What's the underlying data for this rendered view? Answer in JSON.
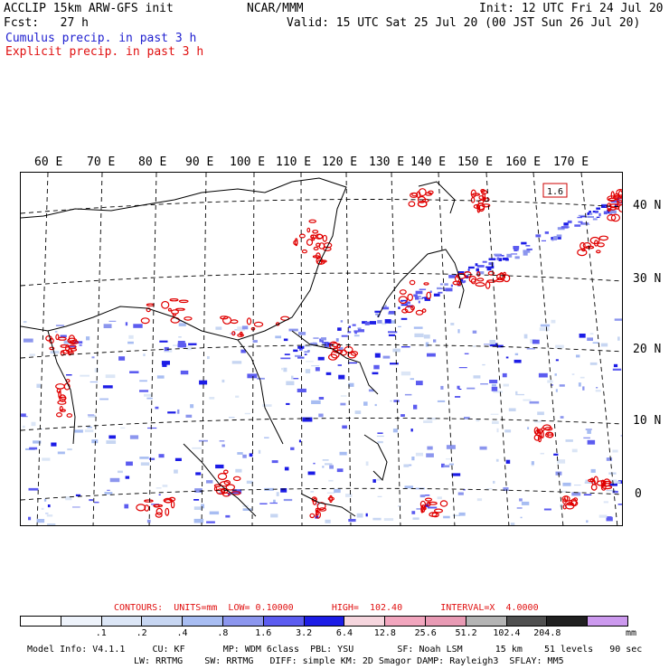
{
  "header": {
    "line1_left": "ACCLIP 15km ARW-GFS init",
    "line1_center": "NCAR/MMM",
    "line1_right": "Init: 12 UTC Fri 24 Jul 20",
    "line2_left": "Fcst:   27 h",
    "line2_right": "Valid: 15 UTC Sat 25 Jul 20 (00 JST Sun 26 Jul 20)",
    "legend_cumulus": "Cumulus precip. in past 3 h",
    "legend_explicit": "Explicit precip. in past 3 h"
  },
  "map": {
    "lon_labels": [
      "60 E",
      "70 E",
      "80 E",
      "90 E",
      "100 E",
      "110 E",
      "120 E",
      "130 E",
      "140 E",
      "150 E",
      "160 E",
      "170 E"
    ],
    "lat_labels": [
      "40 N",
      "30 N",
      "20 N",
      "10 N",
      "0"
    ],
    "max_label": "1.6"
  },
  "contours": {
    "text": "CONTOURS:  UNITS=mm  LOW= 0.10000       HIGH=  102.40       INTERVAL=X  4.0000"
  },
  "colorbar": {
    "colors": [
      "#ffffff",
      "#eef3fb",
      "#dce6f6",
      "#c7d6f2",
      "#a8bdf2",
      "#8c96ee",
      "#5c5cf0",
      "#1c1ce6",
      "#f6d6de",
      "#f2a6be",
      "#e89ab4",
      "#b4b4b4",
      "#505050",
      "#202020",
      "#cc99ee"
    ],
    "labels": [
      ".1",
      ".2",
      ".4",
      ".8",
      "1.6",
      "3.2",
      "6.4",
      "12.8",
      "25.6",
      "51.2",
      "102.4",
      "204.8"
    ],
    "units": "mm"
  },
  "footer": {
    "line1": "Model Info: V4.1.1     CU: KF       MP: WDM 6class  PBL: YSU        SF: Noah LSM      15 km    51 levels   90 sec",
    "line2": "LW: RRTMG    SW: RRTMG   DIFF: simple KM: 2D Smagor DAMP: Rayleigh3  SFLAY: MM5"
  }
}
